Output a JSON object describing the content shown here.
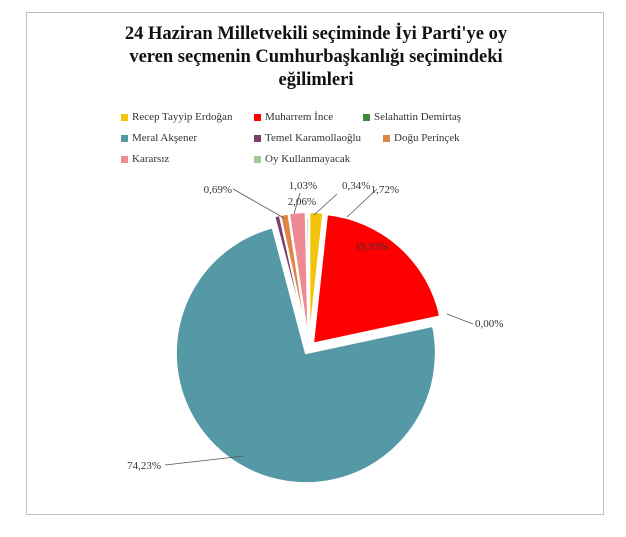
{
  "title_lines": [
    "24 Haziran Milletvekili seçiminde İyi Parti'ye oy",
    "veren seçmenin Cumhurbaşkanlığı seçimindeki",
    "eğilimleri"
  ],
  "chart_data": {
    "type": "pie",
    "title": "24 Haziran Milletvekili seçiminde İyi Parti'ye oy veren seçmenin Cumhurbaşkanlığı seçimindeki eğilimleri",
    "legend_position": "top",
    "slices": [
      {
        "name": "Recep Tayyip Erdoğan",
        "value": 1.72,
        "label": "1,72%",
        "color": "#f2c40c"
      },
      {
        "name": "Muharrem İnce",
        "value": 19.93,
        "label": "19,93%",
        "color": "#ff0000"
      },
      {
        "name": "Selahattin Demirtaş",
        "value": 0.0,
        "label": "0,00%",
        "color": "#3b8a3c"
      },
      {
        "name": "Meral Akşener",
        "value": 74.23,
        "label": "74,23%",
        "color": "#5599a6"
      },
      {
        "name": "Temel Karamollaoğlu",
        "value": 0.69,
        "label": "0,69%",
        "color": "#7b3f6e"
      },
      {
        "name": "Doğu Perinçek",
        "value": 1.03,
        "label": "1,03%",
        "color": "#dd8545"
      },
      {
        "name": "Kararsız",
        "value": 2.06,
        "label": "2,06%",
        "color": "#ee8a93"
      },
      {
        "name": "Oy Kullanmayacak",
        "value": 0.34,
        "label": "0,34%",
        "color": "#9ccc91"
      }
    ]
  }
}
